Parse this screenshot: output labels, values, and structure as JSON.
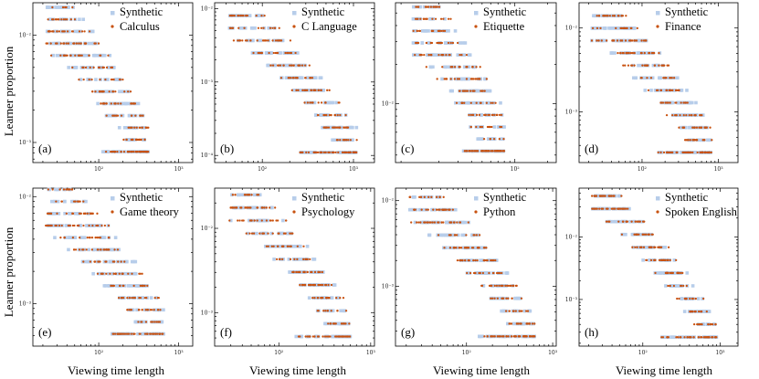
{
  "figure": {
    "xlabel": "Viewing time length",
    "ylabel": "Learner proportion",
    "colors": {
      "synthetic": "#b7cdea",
      "empirical": "#c8510f"
    }
  },
  "chart_data": [
    {
      "type": "scatter",
      "id": "a",
      "panel_label": "(a)",
      "series": [
        {
          "name": "Synthetic",
          "role": "synthetic"
        },
        {
          "name": "Calculus",
          "role": "empirical"
        }
      ],
      "x_ticks": [
        {
          "value": 100,
          "label": "10²"
        },
        {
          "value": 1000,
          "label": "10³"
        }
      ],
      "y_ticks": [
        {
          "value": 0.01,
          "label": "10⁻²"
        },
        {
          "value": 0.001,
          "label": "10⁻³"
        }
      ],
      "xlim": [
        15,
        1500
      ],
      "ylim": [
        0.00065,
        0.02
      ],
      "x_scale": "log",
      "y_scale": "log",
      "x_max": 420,
      "y_hi": 0.014,
      "y_lo": 0.00082,
      "legend": "top-right"
    },
    {
      "type": "scatter",
      "id": "b",
      "panel_label": "(b)",
      "series": [
        {
          "name": "Synthetic",
          "role": "synthetic"
        },
        {
          "name": "C Language",
          "role": "empirical"
        }
      ],
      "x_ticks": [
        {
          "value": 100,
          "label": "10²"
        },
        {
          "value": 1000,
          "label": "10³"
        }
      ],
      "y_ticks": [
        {
          "value": 0.01,
          "label": "10⁻²"
        },
        {
          "value": 0.001,
          "label": "10⁻³"
        },
        {
          "value": 0.0001,
          "label": "10⁻⁴"
        }
      ],
      "xlim": [
        30,
        1700
      ],
      "ylim": [
        8e-05,
        0.012
      ],
      "x_scale": "log",
      "y_scale": "log",
      "x_max": 1100,
      "y_hi": 0.008,
      "y_lo": 0.00011,
      "legend": "top-right"
    },
    {
      "type": "scatter",
      "id": "c",
      "panel_label": "(c)",
      "series": [
        {
          "name": "Synthetic",
          "role": "synthetic"
        },
        {
          "name": "Etiquette",
          "role": "empirical"
        }
      ],
      "x_ticks": [
        {
          "value": 100,
          "label": "10²"
        }
      ],
      "y_ticks": [
        {
          "value": 0.01,
          "label": "10⁻²"
        }
      ],
      "xlim": [
        8,
        240
      ],
      "ylim": [
        0.0035,
        0.06
      ],
      "x_scale": "log",
      "y_scale": "log",
      "x_max": 80,
      "y_hi": 0.045,
      "y_lo": 0.0043,
      "legend": "top-right"
    },
    {
      "type": "scatter",
      "id": "d",
      "panel_label": "(d)",
      "series": [
        {
          "name": "Synthetic",
          "role": "synthetic"
        },
        {
          "name": "Finance",
          "role": "empirical"
        }
      ],
      "x_ticks": [
        {
          "value": 100,
          "label": "10²"
        },
        {
          "value": 1000,
          "label": "10³"
        }
      ],
      "y_ticks": [
        {
          "value": 0.01,
          "label": "10⁻²"
        },
        {
          "value": 0.001,
          "label": "10⁻³"
        }
      ],
      "xlim": [
        15,
        1800
      ],
      "ylim": [
        0.00025,
        0.02
      ],
      "x_scale": "log",
      "y_scale": "log",
      "x_max": 820,
      "y_hi": 0.014,
      "y_lo": 0.00033,
      "legend": "top-right"
    },
    {
      "type": "scatter",
      "id": "e",
      "panel_label": "(e)",
      "series": [
        {
          "name": "Synthetic",
          "role": "synthetic"
        },
        {
          "name": "Game theory",
          "role": "empirical"
        }
      ],
      "x_ticks": [
        {
          "value": 100,
          "label": "10²"
        },
        {
          "value": 1000,
          "label": "10³"
        }
      ],
      "y_ticks": [
        {
          "value": 0.01,
          "label": "10⁻²"
        },
        {
          "value": 0.001,
          "label": "10⁻³"
        }
      ],
      "xlim": [
        15,
        1500
      ],
      "ylim": [
        0.0004,
        0.012
      ],
      "x_scale": "log",
      "y_scale": "log",
      "x_max": 650,
      "y_hi": 0.009,
      "y_lo": 0.00052,
      "legend": "top-right"
    },
    {
      "type": "scatter",
      "id": "f",
      "panel_label": "(f)",
      "series": [
        {
          "name": "Synthetic",
          "role": "synthetic"
        },
        {
          "name": "Psychology",
          "role": "empirical"
        }
      ],
      "x_ticks": [
        {
          "value": 100,
          "label": "10²"
        },
        {
          "value": 1000,
          "label": "10³"
        }
      ],
      "y_ticks": [
        {
          "value": 0.01,
          "label": "10⁻²"
        },
        {
          "value": 0.001,
          "label": "10⁻³"
        }
      ],
      "xlim": [
        20,
        1100
      ],
      "ylim": [
        0.0004,
        0.03
      ],
      "x_scale": "log",
      "y_scale": "log",
      "x_max": 600,
      "y_hi": 0.025,
      "y_lo": 0.00052,
      "legend": "top-right"
    },
    {
      "type": "scatter",
      "id": "g",
      "panel_label": "(g)",
      "series": [
        {
          "name": "Synthetic",
          "role": "synthetic"
        },
        {
          "name": "Python",
          "role": "empirical"
        }
      ],
      "x_ticks": [
        {
          "value": 100,
          "label": "10²"
        },
        {
          "value": 1000,
          "label": "10³"
        }
      ],
      "y_ticks": [
        {
          "value": 0.01,
          "label": "10⁻²"
        },
        {
          "value": 0.001,
          "label": "10⁻³"
        }
      ],
      "xlim": [
        15,
        1100
      ],
      "ylim": [
        0.0002,
        0.014
      ],
      "x_scale": "log",
      "y_scale": "log",
      "x_max": 620,
      "y_hi": 0.011,
      "y_lo": 0.00026,
      "legend": "top-right"
    },
    {
      "type": "scatter",
      "id": "h",
      "panel_label": "(h)",
      "series": [
        {
          "name": "Synthetic",
          "role": "synthetic"
        },
        {
          "name": "Spoken English",
          "role": "empirical"
        }
      ],
      "x_ticks": [
        {
          "value": 100,
          "label": "10²"
        },
        {
          "value": 1000,
          "label": "10³"
        }
      ],
      "y_ticks": [
        {
          "value": 0.01,
          "label": "10⁻²"
        },
        {
          "value": 0.001,
          "label": "10⁻³"
        }
      ],
      "xlim": [
        15,
        1700
      ],
      "ylim": [
        0.00018,
        0.06
      ],
      "x_scale": "log",
      "y_scale": "log",
      "x_max": 900,
      "y_hi": 0.045,
      "y_lo": 0.00025,
      "legend": "top-right"
    }
  ]
}
